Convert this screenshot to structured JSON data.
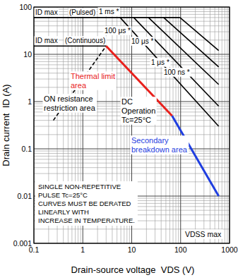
{
  "chart_data": {
    "type": "line",
    "log": true,
    "grid": true,
    "xlabel": "Drain-source voltage  VDS (V)",
    "ylabel": "Drain current  ID (A)",
    "xlim": [
      0.1,
      1000
    ],
    "ylim": [
      0.001,
      100
    ],
    "xticks": [
      0.1,
      1,
      10,
      100,
      1000
    ],
    "yticks": [
      0.001,
      0.01,
      0.1,
      1,
      10,
      100
    ],
    "series": [
      {
        "color": "#000000",
        "line_style": "solid",
        "x": [
          0.1,
          97
        ],
        "values": [
          60,
          60
        ]
      },
      {
        "color": "#000000",
        "line_style": "solid",
        "x": [
          0.1,
          3
        ],
        "values": [
          15,
          15
        ]
      },
      {
        "color": "#000000",
        "line_style": "dashed",
        "x": [
          0.25,
          3
        ],
        "values": [
          0.4,
          15
        ]
      },
      {
        "color": "#e8201c",
        "line_style": "solid",
        "x": [
          3,
          67
        ],
        "values": [
          15,
          0.5
        ]
      },
      {
        "color": "#1f3ee0",
        "line_style": "solid",
        "x": [
          67,
          600
        ],
        "values": [
          0.5,
          0.01
        ]
      },
      {
        "color": "#000000",
        "line_style": "solid",
        "label": "1 ms *",
        "x": [
          5.8,
          600
        ],
        "values": [
          60,
          0.3
        ]
      },
      {
        "color": "#000000",
        "line_style": "solid",
        "label": "100 μs *",
        "x": [
          11,
          600
        ],
        "values": [
          60,
          0.8
        ]
      },
      {
        "color": "#000000",
        "line_style": "solid",
        "label": "10 μs *",
        "x": [
          22,
          600
        ],
        "values": [
          60,
          2.3
        ]
      },
      {
        "color": "#000000",
        "line_style": "solid",
        "label": "1 μs *",
        "x": [
          45,
          600
        ],
        "values": [
          60,
          5.4
        ]
      },
      {
        "color": "#000000",
        "line_style": "solid",
        "label": "100 ns *",
        "x": [
          97,
          600
        ],
        "values": [
          60,
          12
        ]
      }
    ],
    "annotations": [
      {
        "lines": [
          "ID max"
        ],
        "color": "#000000"
      },
      {
        "lines": [
          "(Pulsed)"
        ],
        "color": "#000000"
      },
      {
        "lines": [
          "ID max"
        ],
        "color": "#000000"
      },
      {
        "lines": [
          "(Continuous)"
        ],
        "color": "#000000"
      },
      {
        "lines": [
          "Thermal limit",
          "area"
        ],
        "color": "#e8201c"
      },
      {
        "lines": [
          "ON resistance",
          "restriction area"
        ],
        "color": "#000000"
      },
      {
        "lines": [
          "DC",
          "Operation",
          "Tc=25°C"
        ],
        "color": "#000000"
      },
      {
        "lines": [
          "Secondary",
          "breakdown area"
        ],
        "color": "#1f3ee0"
      },
      {
        "lines": [
          "SINGLE NON-REPETITIVE",
          "PULSE Tc=25°C",
          "CURVES MUST BE DERATED",
          "LINEARLY WITH",
          "INCREASE IN TEMPERATURE."
        ],
        "color": "#000000"
      },
      {
        "lines": [
          "VDSS max"
        ],
        "color": "#000000"
      }
    ]
  }
}
